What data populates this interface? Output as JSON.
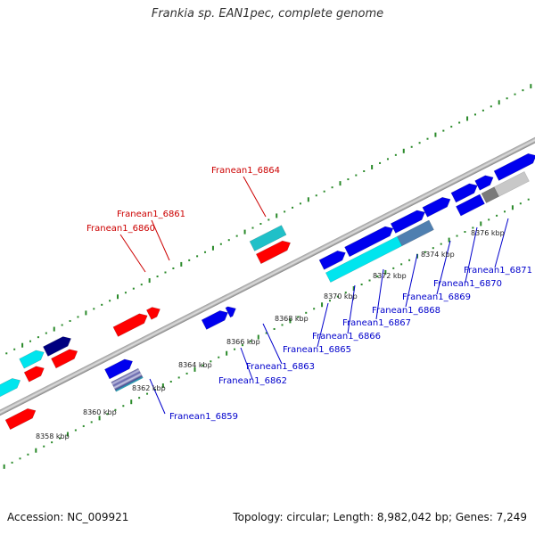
{
  "title": "Frankia sp. EAN1pec, complete genome",
  "footer": {
    "accession": "Accession: NC_009921",
    "summary": "Topology: circular; Length: 8,982,042 bp; Genes: 7,249"
  },
  "colors": {
    "forward_label": "#cc0000",
    "reverse_label": "#0000cc",
    "red": "#ff0000",
    "blue": "#0000ee",
    "navy": "#000080",
    "cyan": "#00e5ee",
    "teal": "#20c0c8",
    "steel": "#4f7fb0",
    "grey": "#7a7a7a",
    "light_grey": "#c8c8c8",
    "dots": "#2a8a2a"
  },
  "scale_labels": [
    "8358 kbp",
    "8360 kbp",
    "8362 kbp",
    "8364 kbp",
    "8366 kbp",
    "8368 kbp",
    "8370 kbp",
    "8372 kbp",
    "8374 kbp",
    "8376 kbp"
  ],
  "forward_labels": [
    "Franean1_6864",
    "Franean1_6861",
    "Franean1_6860"
  ],
  "reverse_labels": [
    "Franean1_6859",
    "Franean1_6862",
    "Franean1_6863",
    "Franean1_6865",
    "Franean1_6866",
    "Franean1_6867",
    "Franean1_6868",
    "Franean1_6869",
    "Franean1_6870",
    "Franean1_6871"
  ]
}
